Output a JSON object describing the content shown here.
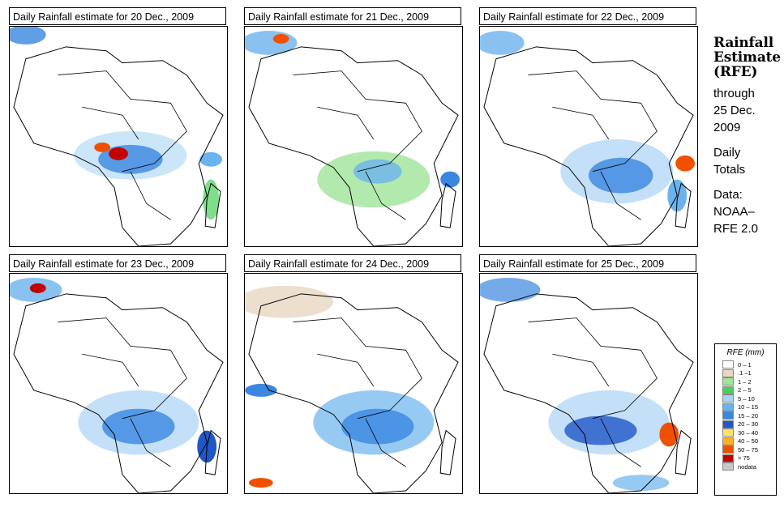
{
  "panels": [
    {
      "title": "Daily Rainfall estimate for  20 Dec., 2009"
    },
    {
      "title": "Daily Rainfall estimate for  21 Dec., 2009"
    },
    {
      "title": "Daily Rainfall estimate for  22 Dec., 2009"
    },
    {
      "title": "Daily Rainfall estimate for  23 Dec., 2009"
    },
    {
      "title": "Daily Rainfall estimate for  24 Dec., 2009"
    },
    {
      "title": "Daily Rainfall estimate for  25 Dec., 2009"
    }
  ],
  "side": {
    "title_line1": "Rainfall",
    "title_line2": "Estimate",
    "title_line3": "(RFE)",
    "through_label": "through",
    "through_date": "25 Dec.",
    "through_year": "2009",
    "totals_line1": "Daily",
    "totals_line2": "Totals",
    "data_label": "Data:",
    "data_source_line1": "NOAA–",
    "data_source_line2": "RFE 2.0"
  },
  "legend": {
    "title": "RFE (mm)",
    "items": [
      {
        "label": "0 – 1",
        "color": "#ffffff"
      },
      {
        "label": ".1 –1",
        "color": "#e8d7c2"
      },
      {
        "label": "1 – 2",
        "color": "#9fe59a"
      },
      {
        "label": "2 – 5",
        "color": "#48d05a"
      },
      {
        "label": "5 – 10",
        "color": "#a9d3f5"
      },
      {
        "label": "10 – 15",
        "color": "#6bb3ee"
      },
      {
        "label": "15 – 20",
        "color": "#3a86e0"
      },
      {
        "label": "20 – 30",
        "color": "#1f56c8"
      },
      {
        "label": "30 – 40",
        "color": "#ffe36a"
      },
      {
        "label": "40 – 50",
        "color": "#ffb020"
      },
      {
        "label": "50 – 75",
        "color": "#f05000"
      },
      {
        "label": "> 75",
        "color": "#c40000"
      },
      {
        "label": "nodata",
        "color": "#c8c8c8"
      }
    ]
  }
}
